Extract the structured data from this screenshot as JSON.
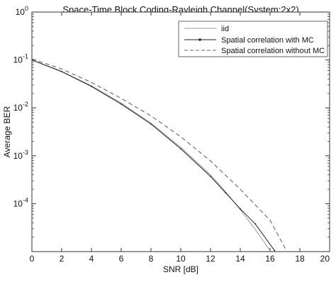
{
  "chart_data": {
    "type": "line",
    "title": "Space-Time Block Coding-Rayleigh Channel(System:2x2)",
    "xlabel": "SNR [dB]",
    "ylabel": "Average BER",
    "xlim": [
      0,
      20
    ],
    "ylim": [
      1e-05,
      1
    ],
    "yscale": "log",
    "xticks": [
      "0",
      "2",
      "4",
      "6",
      "8",
      "10",
      "12",
      "14",
      "16",
      "18",
      "20"
    ],
    "yticks": [
      {
        "base": "10",
        "exp": "0"
      },
      {
        "base": "10",
        "exp": "-1"
      },
      {
        "base": "10",
        "exp": "-2"
      },
      {
        "base": "10",
        "exp": "-3"
      },
      {
        "base": "10",
        "exp": "-4"
      }
    ],
    "grid": false,
    "legend_position": "top-right",
    "series": [
      {
        "name": "iid",
        "color": "#9a9a9a",
        "style": "solid",
        "x": [
          0,
          2,
          4,
          6,
          8,
          10,
          12,
          13,
          14,
          15,
          16
        ],
        "y": [
          0.1,
          0.058,
          0.029,
          0.0126,
          0.0048,
          0.0015,
          0.0004,
          0.00018,
          7.5e-05,
          2.9e-05,
          1.05e-05
        ]
      },
      {
        "name": "Spatial correlation with MC",
        "color": "#222222",
        "style": "solid-marker",
        "x": [
          0,
          2,
          4,
          6,
          8,
          10,
          12,
          13,
          14,
          15,
          16.3
        ],
        "y": [
          0.1,
          0.057,
          0.028,
          0.012,
          0.0046,
          0.0014,
          0.00037,
          0.00017,
          7.8e-05,
          3.8e-05,
          1.05e-05
        ]
      },
      {
        "name": "Spatial correlation without MC",
        "color": "#666666",
        "style": "dashed",
        "x": [
          0,
          2,
          4,
          6,
          8,
          10,
          12,
          14,
          16,
          17.1
        ],
        "y": [
          0.105,
          0.065,
          0.034,
          0.0158,
          0.0068,
          0.0025,
          0.00078,
          0.0002,
          4.5e-05,
          1.05e-05
        ]
      }
    ]
  }
}
